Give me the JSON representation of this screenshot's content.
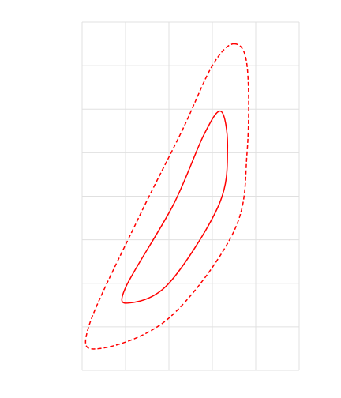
{
  "chart_data": {
    "type": "line",
    "title": "",
    "xlabel": "",
    "ylabel": "",
    "grid": true,
    "xlim": [
      0,
      5
    ],
    "ylim": [
      0,
      8
    ],
    "grid_columns": 5,
    "grid_rows": 8,
    "series": [
      {
        "style": "dashed",
        "color": "#ff0000",
        "points": [
          [
            3.5,
            7.5
          ],
          [
            3.8,
            7.0
          ],
          [
            3.8,
            5.0
          ],
          [
            3.5,
            3.2
          ],
          [
            2.0,
            1.2
          ],
          [
            0.4,
            0.5
          ],
          [
            0.15,
            1.0
          ],
          [
            1.3,
            3.5
          ],
          [
            2.3,
            5.5
          ],
          [
            3.0,
            7.0
          ]
        ]
      },
      {
        "style": "solid",
        "color": "#ff0000",
        "points": [
          [
            3.2,
            5.95
          ],
          [
            3.35,
            5.1
          ],
          [
            3.15,
            3.8
          ],
          [
            2.0,
            2.0
          ],
          [
            1.1,
            1.55
          ],
          [
            1.0,
            1.9
          ],
          [
            2.1,
            3.8
          ],
          [
            2.8,
            5.4
          ]
        ]
      }
    ]
  }
}
